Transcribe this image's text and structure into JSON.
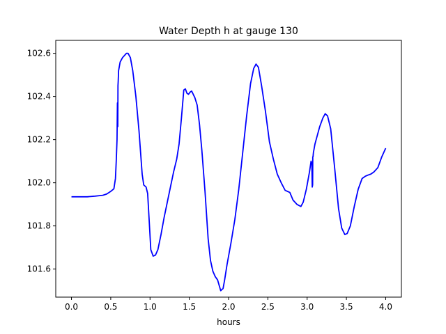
{
  "chart_data": {
    "type": "line",
    "title": "Water Depth h at gauge 130",
    "xlabel": "hours",
    "ylabel": "",
    "xlim": [
      -0.2,
      4.2
    ],
    "ylim": [
      101.47,
      102.66
    ],
    "xticks": [
      0.0,
      0.5,
      1.0,
      1.5,
      2.0,
      2.5,
      3.0,
      3.5,
      4.0
    ],
    "xtick_labels": [
      "0.0",
      "0.5",
      "1.0",
      "1.5",
      "2.0",
      "2.5",
      "3.0",
      "3.5",
      "4.0"
    ],
    "yticks": [
      101.6,
      101.8,
      102.0,
      102.2,
      102.4,
      102.6
    ],
    "ytick_labels": [
      "101.6",
      "101.8",
      "102.0",
      "102.2",
      "102.4",
      "102.6"
    ],
    "grid": false,
    "legend": "none",
    "series": [
      {
        "color": "#0000ff",
        "x": [
          0.0,
          0.2,
          0.3,
          0.4,
          0.45,
          0.5,
          0.54,
          0.56,
          0.57,
          0.58,
          0.585,
          0.59,
          0.592,
          0.595,
          0.598,
          0.6,
          0.62,
          0.65,
          0.7,
          0.72,
          0.75,
          0.78,
          0.82,
          0.86,
          0.9,
          0.92,
          0.95,
          0.97,
          0.99,
          1.01,
          1.04,
          1.07,
          1.1,
          1.14,
          1.18,
          1.22,
          1.26,
          1.3,
          1.34,
          1.37,
          1.4,
          1.43,
          1.45,
          1.47,
          1.49,
          1.51,
          1.53,
          1.55,
          1.57,
          1.6,
          1.63,
          1.66,
          1.7,
          1.74,
          1.77,
          1.8,
          1.83,
          1.86,
          1.9,
          1.93,
          1.95,
          1.98,
          2.03,
          2.08,
          2.13,
          2.18,
          2.23,
          2.28,
          2.32,
          2.35,
          2.38,
          2.42,
          2.47,
          2.52,
          2.57,
          2.62,
          2.67,
          2.72,
          2.78,
          2.82,
          2.87,
          2.92,
          2.95,
          2.99,
          3.03,
          3.05,
          3.06,
          3.065,
          3.07,
          3.072,
          3.075,
          3.08,
          3.1,
          3.13,
          3.16,
          3.2,
          3.23,
          3.26,
          3.3,
          3.35,
          3.4,
          3.44,
          3.48,
          3.51,
          3.55,
          3.6,
          3.65,
          3.7,
          3.74,
          3.77,
          3.81,
          3.85,
          3.9,
          3.95,
          4.0
        ],
        "y": [
          101.935,
          101.935,
          101.938,
          101.942,
          101.948,
          101.96,
          101.972,
          102.02,
          102.1,
          102.2,
          102.37,
          102.26,
          102.45,
          102.47,
          102.5,
          102.52,
          102.56,
          102.58,
          102.6,
          102.6,
          102.58,
          102.52,
          102.4,
          102.24,
          102.04,
          101.99,
          101.98,
          101.95,
          101.82,
          101.69,
          101.66,
          101.665,
          101.69,
          101.76,
          101.84,
          101.91,
          101.98,
          102.05,
          102.11,
          102.18,
          102.3,
          102.43,
          102.435,
          102.415,
          102.41,
          102.42,
          102.425,
          102.41,
          102.395,
          102.36,
          102.27,
          102.15,
          101.96,
          101.74,
          101.64,
          101.59,
          101.565,
          101.55,
          101.5,
          101.51,
          101.55,
          101.62,
          101.72,
          101.83,
          101.97,
          102.14,
          102.31,
          102.46,
          102.53,
          102.55,
          102.535,
          102.45,
          102.33,
          102.19,
          102.11,
          102.04,
          102.0,
          101.965,
          101.955,
          101.92,
          101.9,
          101.89,
          101.91,
          101.97,
          102.05,
          102.1,
          102.09,
          101.98,
          101.99,
          102.12,
          102.12,
          102.14,
          102.18,
          102.22,
          102.26,
          102.3,
          102.32,
          102.31,
          102.25,
          102.07,
          101.88,
          101.79,
          101.76,
          101.765,
          101.8,
          101.89,
          101.97,
          102.02,
          102.03,
          102.035,
          102.04,
          102.05,
          102.07,
          102.12,
          102.16
        ]
      }
    ]
  }
}
